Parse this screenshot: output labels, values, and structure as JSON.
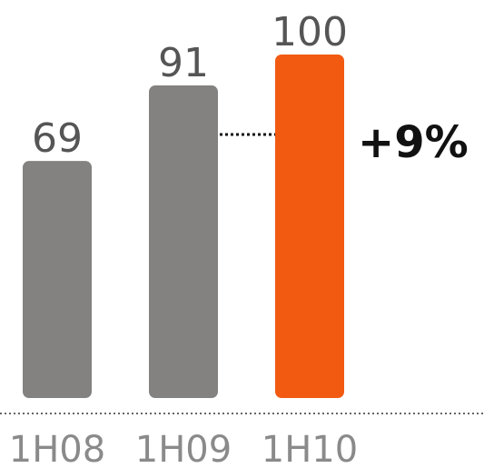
{
  "chart_data": {
    "type": "bar",
    "categories": [
      "1H08",
      "1H09",
      "1H10"
    ],
    "values": [
      69,
      91,
      100
    ],
    "colors": [
      "#838281",
      "#838281",
      "#f25a12"
    ],
    "annotation": "+9%"
  }
}
